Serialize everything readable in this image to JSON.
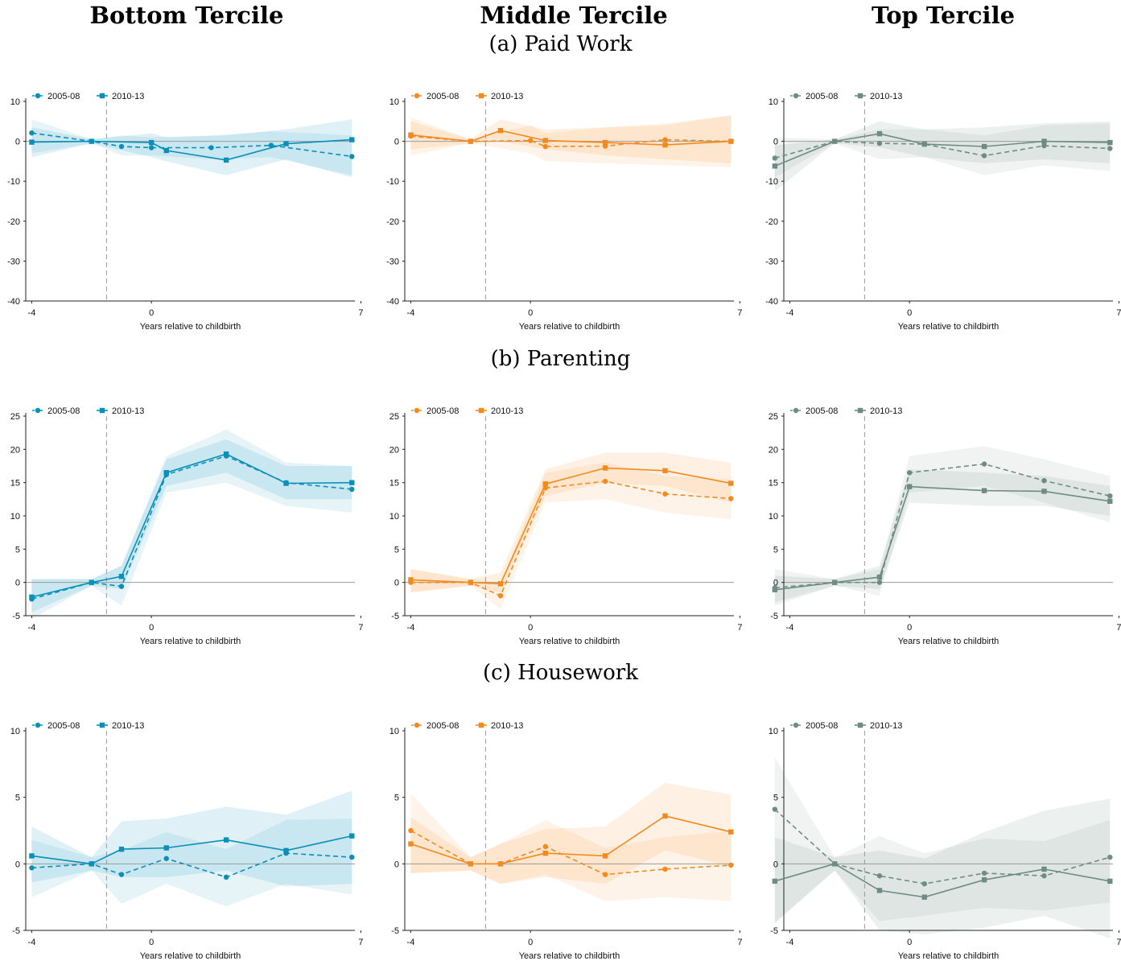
{
  "column_titles": [
    "Bottom Tercile",
    "Middle Tercile",
    "Top Tercile"
  ],
  "section_titles": [
    "(a) Paid Work",
    "(b) Parenting",
    "(c) Housework"
  ],
  "colors": {
    "bottom": "#0a8fb8",
    "middle": "#f58a1c",
    "top": "#6f8c84"
  },
  "chart_data": [
    {
      "type": "line",
      "panel": "Paid Work / Bottom Tercile",
      "color": "#0a8fb8",
      "xlabel": "Years relative to childbirth",
      "ylabel": "",
      "x_ticks": [
        -4,
        0,
        7
      ],
      "y_ticks": [
        10,
        0,
        -10,
        -20,
        -30,
        -40
      ],
      "ylim": [
        -40,
        10
      ],
      "xlim": [
        -4.2,
        6.8
      ],
      "event_line_x": -1.5,
      "legend": "top-left",
      "series": [
        {
          "name": "2005-08",
          "marker": "circle",
          "line": "dashed",
          "x": [
            -4,
            -2,
            -1,
            0,
            2,
            4,
            6.7
          ],
          "y": [
            2.1,
            0,
            -1.3,
            -1.6,
            -1.6,
            -1,
            -3.8
          ],
          "lower": [
            -3,
            -0.5,
            -3.5,
            -3.5,
            -4.5,
            -4,
            -8.5
          ],
          "upper": [
            5.5,
            0.5,
            1.5,
            1,
            1.5,
            2.5,
            1.5
          ]
        },
        {
          "name": "2010-13",
          "marker": "square",
          "line": "solid",
          "x": [
            -4,
            -2,
            0,
            0.5,
            2.5,
            4.5,
            6.7
          ],
          "y": [
            -0.2,
            0,
            -0.3,
            -2.3,
            -4.7,
            -0.6,
            0.4
          ],
          "lower": [
            -4,
            -0.5,
            -4,
            -5,
            -8.5,
            -4.5,
            -9
          ],
          "upper": [
            3.5,
            0.5,
            2,
            1,
            1.5,
            3,
            5.5
          ]
        }
      ]
    },
    {
      "type": "line",
      "panel": "Paid Work / Middle Tercile",
      "color": "#f58a1c",
      "xlabel": "Years relative to childbirth",
      "ylabel": "",
      "x_ticks": [
        -4,
        0,
        7
      ],
      "y_ticks": [
        10,
        0,
        -10,
        -20,
        -30,
        -40
      ],
      "ylim": [
        -40,
        10
      ],
      "xlim": [
        -4.2,
        6.8
      ],
      "event_line_x": -1.5,
      "legend": "top-left",
      "series": [
        {
          "name": "2005-08",
          "marker": "circle",
          "line": "dashed",
          "x": [
            -4,
            -2,
            0,
            0.5,
            2.5,
            4.5,
            6.7
          ],
          "y": [
            1.3,
            0,
            0.2,
            -1.3,
            -1.2,
            0.4,
            0
          ],
          "lower": [
            -3.5,
            -0.5,
            -3,
            -5,
            -5.5,
            -6,
            -6.5
          ],
          "upper": [
            6,
            0.5,
            4,
            2,
            3.5,
            4.5,
            6.5
          ]
        },
        {
          "name": "2010-13",
          "marker": "square",
          "line": "solid",
          "x": [
            -4,
            -2,
            -1,
            0.5,
            2.5,
            4.5,
            6.7
          ],
          "y": [
            1.6,
            0,
            2.7,
            0.2,
            -0.3,
            -0.9,
            0
          ],
          "lower": [
            -2,
            -0.5,
            0,
            -2,
            -3.5,
            -4.5,
            -5.5
          ],
          "upper": [
            5,
            0.5,
            5.5,
            3,
            3.5,
            4,
            6.5
          ]
        }
      ]
    },
    {
      "type": "line",
      "panel": "Paid Work / Top Tercile",
      "color": "#6f8c84",
      "xlabel": "Years relative to childbirth",
      "ylabel": "",
      "x_ticks": [
        -4,
        0,
        7
      ],
      "y_ticks": [
        10,
        0,
        -10,
        -20,
        -30,
        -40
      ],
      "ylim": [
        -40,
        10
      ],
      "xlim": [
        -4.2,
        6.8
      ],
      "event_line_x": -1.5,
      "legend": "top-left",
      "series": [
        {
          "name": "2005-08",
          "marker": "circle",
          "line": "dashed",
          "x": [
            -4.5,
            -2.5,
            -1,
            0.5,
            2.5,
            4.5,
            6.7
          ],
          "y": [
            -4.2,
            0,
            -0.5,
            -0.7,
            -3.6,
            -1.1,
            -1.8
          ],
          "lower": [
            -9,
            -0.5,
            -4.5,
            -4,
            -8.5,
            -6,
            -7.5
          ],
          "upper": [
            1,
            0.5,
            3,
            3,
            1.5,
            4,
            4.5
          ]
        },
        {
          "name": "2010-13",
          "marker": "square",
          "line": "solid",
          "x": [
            -4.5,
            -2.5,
            -1,
            0.5,
            2.5,
            4.5,
            6.7
          ],
          "y": [
            -6.2,
            0,
            1.9,
            -0.7,
            -1.3,
            0,
            -0.3
          ],
          "lower": [
            -12.5,
            -0.5,
            -1.5,
            -4,
            -5.5,
            -4.5,
            -5.5
          ],
          "upper": [
            -1,
            0.5,
            5,
            3,
            3.5,
            4.5,
            5
          ]
        }
      ]
    },
    {
      "type": "line",
      "panel": "Parenting / Bottom Tercile",
      "color": "#0a8fb8",
      "xlabel": "Years relative to childbirth",
      "ylabel": "",
      "x_ticks": [
        -4,
        0,
        7
      ],
      "y_ticks": [
        25,
        20,
        15,
        10,
        5,
        0,
        -5
      ],
      "ylim": [
        -5,
        25
      ],
      "xlim": [
        -4.2,
        6.8
      ],
      "event_line_x": -1.5,
      "legend": "top-left",
      "series": [
        {
          "name": "2005-08",
          "marker": "circle",
          "line": "dashed",
          "x": [
            -4,
            -2,
            -1,
            0.5,
            2.5,
            4.5,
            6.7
          ],
          "y": [
            -2.5,
            0,
            -0.6,
            16.2,
            19,
            15,
            14
          ],
          "lower": [
            -5.5,
            -0.5,
            -3.5,
            13.5,
            15,
            11.5,
            10.5
          ],
          "upper": [
            0.5,
            0.5,
            2.5,
            19,
            23,
            18,
            17.5
          ]
        },
        {
          "name": "2010-13",
          "marker": "square",
          "line": "solid",
          "x": [
            -4,
            -2,
            -1,
            0.5,
            2.5,
            4.5,
            6.7
          ],
          "y": [
            -2.2,
            0,
            0.9,
            16.5,
            19.3,
            14.9,
            15
          ],
          "lower": [
            -4.5,
            -0.5,
            -1,
            14.5,
            16.5,
            12.5,
            12.5
          ],
          "upper": [
            0.5,
            0.5,
            2.5,
            18.5,
            21.5,
            17.5,
            17.5
          ]
        }
      ]
    },
    {
      "type": "line",
      "panel": "Parenting / Middle Tercile",
      "color": "#f58a1c",
      "xlabel": "Years relative to childbirth",
      "ylabel": "",
      "x_ticks": [
        -4,
        0,
        7
      ],
      "y_ticks": [
        25,
        20,
        15,
        10,
        5,
        0,
        -5
      ],
      "ylim": [
        -5,
        25
      ],
      "xlim": [
        -4.2,
        6.8
      ],
      "event_line_x": -1.5,
      "legend": "top-left",
      "series": [
        {
          "name": "2005-08",
          "marker": "circle",
          "line": "dashed",
          "x": [
            -4,
            -2,
            -1,
            0.5,
            2.5,
            4.5,
            6.7
          ],
          "y": [
            0,
            0,
            -2,
            14.2,
            15.2,
            13.3,
            12.6
          ],
          "lower": [
            -1.5,
            -0.5,
            -4,
            12,
            12.5,
            10.5,
            9.5
          ],
          "upper": [
            2,
            0.5,
            0,
            16.5,
            18,
            16,
            15.5
          ]
        },
        {
          "name": "2010-13",
          "marker": "square",
          "line": "solid",
          "x": [
            -4,
            -2,
            -1,
            0.5,
            2.5,
            4.5,
            6.7
          ],
          "y": [
            0.4,
            0,
            -0.2,
            14.8,
            17.2,
            16.8,
            14.9
          ],
          "lower": [
            -1.5,
            -0.5,
            -1.5,
            13,
            15,
            14.5,
            12
          ],
          "upper": [
            2,
            0.5,
            1.5,
            17,
            19.5,
            19.5,
            18
          ]
        }
      ]
    },
    {
      "type": "line",
      "panel": "Parenting / Top Tercile",
      "color": "#6f8c84",
      "xlabel": "Years relative to childbirth",
      "ylabel": "",
      "x_ticks": [
        -4,
        0,
        7
      ],
      "y_ticks": [
        25,
        20,
        15,
        10,
        5,
        0,
        -5
      ],
      "ylim": [
        -5,
        25
      ],
      "xlim": [
        -4.2,
        6.8
      ],
      "event_line_x": -1.5,
      "legend": "top-left",
      "series": [
        {
          "name": "2005-08",
          "marker": "circle",
          "line": "dashed",
          "x": [
            -4.5,
            -2.5,
            -1,
            0,
            2.5,
            4.5,
            6.7
          ],
          "y": [
            -0.8,
            0,
            0,
            16.5,
            17.8,
            15.3,
            13
          ],
          "lower": [
            -3.5,
            -0.5,
            -2,
            13.5,
            14.5,
            12,
            9
          ],
          "upper": [
            2,
            0.5,
            2,
            19,
            20.5,
            18.5,
            16
          ]
        },
        {
          "name": "2010-13",
          "marker": "square",
          "line": "solid",
          "x": [
            -4.5,
            -2.5,
            -1,
            0,
            2.5,
            4.5,
            6.7
          ],
          "y": [
            -1.1,
            0,
            0.8,
            14.4,
            13.8,
            13.7,
            12.2
          ],
          "lower": [
            -3,
            -0.5,
            -1,
            12,
            11.5,
            11.5,
            10
          ],
          "upper": [
            1,
            0.5,
            2.5,
            17,
            16.5,
            16,
            14.5
          ]
        }
      ]
    },
    {
      "type": "line",
      "panel": "Housework / Bottom Tercile",
      "color": "#0a8fb8",
      "xlabel": "Years relative to childbirth",
      "ylabel": "",
      "x_ticks": [
        -4,
        0,
        7
      ],
      "y_ticks": [
        10,
        5,
        0,
        -5
      ],
      "ylim": [
        -5,
        10
      ],
      "xlim": [
        -4.2,
        6.8
      ],
      "event_line_x": -1.5,
      "legend": "top-left",
      "series": [
        {
          "name": "2005-08",
          "marker": "circle",
          "line": "dashed",
          "x": [
            -4,
            -2,
            -1,
            0.5,
            2.5,
            4.5,
            6.7
          ],
          "y": [
            -0.3,
            0,
            -0.8,
            0.4,
            -1,
            0.8,
            0.5
          ],
          "lower": [
            -2.5,
            -0.5,
            -3,
            -1.5,
            -3.2,
            -1.5,
            -2.3
          ],
          "upper": [
            1.8,
            0.5,
            1,
            2.4,
            1.1,
            3.3,
            3.4
          ]
        },
        {
          "name": "2010-13",
          "marker": "square",
          "line": "solid",
          "x": [
            -4,
            -2,
            -1,
            0.5,
            2.5,
            4.5,
            6.7
          ],
          "y": [
            0.6,
            0,
            1.1,
            1.2,
            1.8,
            1,
            2.1
          ],
          "lower": [
            -1.4,
            -0.5,
            -1,
            -1,
            -0.5,
            -1.7,
            -1.5
          ],
          "upper": [
            2.8,
            0.5,
            3.2,
            3.4,
            4.3,
            3.7,
            5.5
          ]
        }
      ]
    },
    {
      "type": "line",
      "panel": "Housework / Middle Tercile",
      "color": "#f58a1c",
      "xlabel": "Years relative to childbirth",
      "ylabel": "",
      "x_ticks": [
        -4,
        0,
        7
      ],
      "y_ticks": [
        10,
        5,
        0,
        -5
      ],
      "ylim": [
        -5,
        10
      ],
      "xlim": [
        -4.2,
        6.8
      ],
      "event_line_x": -1.5,
      "legend": "top-left",
      "series": [
        {
          "name": "2005-08",
          "marker": "circle",
          "line": "dashed",
          "x": [
            -4,
            -2,
            -1,
            0.5,
            2.5,
            4.5,
            6.7
          ],
          "y": [
            2.5,
            0,
            0,
            1.3,
            -0.8,
            -0.4,
            -0.1
          ],
          "lower": [
            -0.7,
            -0.5,
            -1.5,
            -0.8,
            -2.8,
            -2.5,
            -2.8
          ],
          "upper": [
            5.3,
            0.5,
            1.5,
            3.3,
            1.2,
            2,
            2.5
          ]
        },
        {
          "name": "2010-13",
          "marker": "square",
          "line": "solid",
          "x": [
            -4,
            -2,
            -1,
            0.5,
            2.5,
            4.5,
            6.7
          ],
          "y": [
            1.5,
            0,
            0,
            0.8,
            0.6,
            3.6,
            2.4
          ],
          "lower": [
            -0.7,
            -0.5,
            -1.5,
            -1,
            -1.5,
            1,
            -0.2
          ],
          "upper": [
            3.5,
            0.5,
            1.5,
            2.6,
            2.8,
            6.1,
            5.2
          ]
        }
      ]
    },
    {
      "type": "line",
      "panel": "Housework / Top Tercile",
      "color": "#6f8c84",
      "xlabel": "Years relative to childbirth",
      "ylabel": "",
      "x_ticks": [
        -4,
        0,
        7
      ],
      "y_ticks": [
        10,
        5,
        0,
        -5
      ],
      "ylim": [
        -5,
        10
      ],
      "xlim": [
        -4.2,
        6.8
      ],
      "event_line_x": -1.5,
      "legend": "top-left",
      "series": [
        {
          "name": "2005-08",
          "marker": "circle",
          "line": "dashed",
          "x": [
            -4.5,
            -2.5,
            -1,
            0.5,
            2.5,
            4.5,
            6.7
          ],
          "y": [
            4.1,
            0,
            -0.9,
            -1.5,
            -0.7,
            -0.9,
            0.5
          ],
          "lower": [
            -4.5,
            -0.5,
            -4.3,
            -3.9,
            -3.3,
            -3.5,
            -2.9
          ],
          "upper": [
            8,
            0.5,
            2.1,
            0.8,
            1.9,
            1.7,
            3.3
          ]
        },
        {
          "name": "2010-13",
          "marker": "square",
          "line": "solid",
          "x": [
            -4.5,
            -2.5,
            -1,
            0.5,
            2.5,
            4.5,
            6.7
          ],
          "y": [
            -1.3,
            0,
            -2,
            -2.5,
            -1.2,
            -0.4,
            -1.3
          ],
          "lower": [
            -4.4,
            -0.5,
            -5,
            -5.3,
            -4.8,
            -3.9,
            -5.6
          ],
          "upper": [
            2,
            0.5,
            1,
            0.4,
            2.4,
            4,
            4.9
          ]
        }
      ]
    }
  ]
}
